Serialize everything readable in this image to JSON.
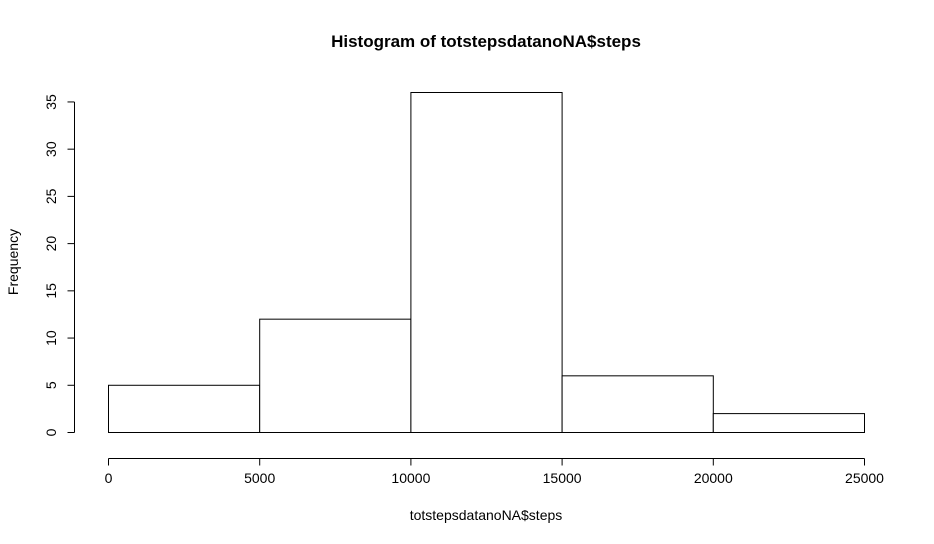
{
  "chart_data": {
    "type": "bar",
    "title": "Histogram of totstepsdatanoNA$steps",
    "xlabel": "totstepsdatanoNA$steps",
    "ylabel": "Frequency",
    "bins": [
      {
        "start": 0,
        "end": 5000,
        "count": 5
      },
      {
        "start": 5000,
        "end": 10000,
        "count": 12
      },
      {
        "start": 10000,
        "end": 15000,
        "count": 36
      },
      {
        "start": 15000,
        "end": 20000,
        "count": 6
      },
      {
        "start": 20000,
        "end": 25000,
        "count": 2
      }
    ],
    "xlim": [
      0,
      25000
    ],
    "ylim": [
      0,
      36
    ],
    "x_ticks": [
      "0",
      "5000",
      "10000",
      "15000",
      "20000",
      "25000"
    ],
    "y_ticks": [
      "0",
      "5",
      "10",
      "15",
      "20",
      "25",
      "30",
      "35"
    ],
    "grid": false,
    "bar_fill": "#ffffff",
    "bar_stroke": "#000000"
  }
}
